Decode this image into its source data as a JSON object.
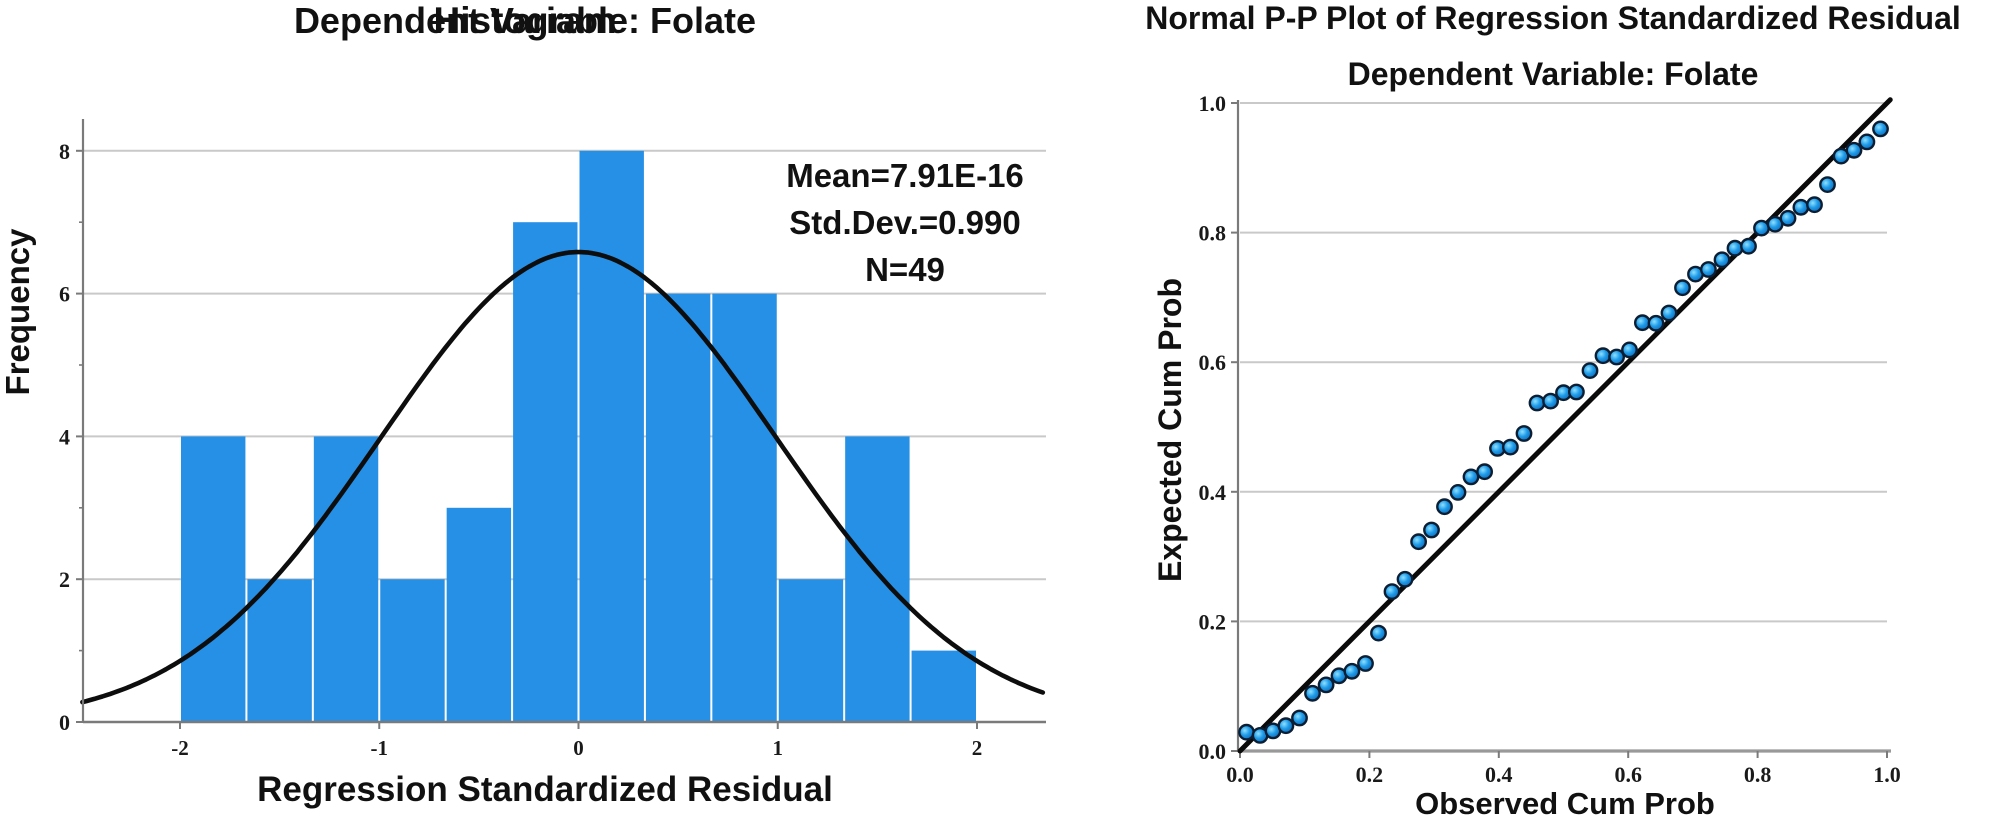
{
  "page": {
    "background": "#ffffff"
  },
  "histogram": {
    "title": "Histogram",
    "subtitle": "Dependent Variable: Folate",
    "x_label": "Regression Standardized Residual",
    "y_label": "Frequency",
    "stats": {
      "mean_label": "Mean=7.91E-16",
      "std_label": "Std.Dev.=0.990",
      "n_label": "N=49"
    }
  },
  "pp_plot": {
    "title": "Normal P-P Plot of Regression Standardized Residual",
    "subtitle": "Dependent Variable: Folate",
    "x_label": "Observed Cum Prob",
    "y_label": "Expected Cum Prob"
  },
  "colors": {
    "bar_fill": "#2690e6",
    "curve": "#0d0d0d",
    "reference_line": "#0a0a0a",
    "gridline": "#c9c9c9",
    "axis": "#7a7a7a",
    "tick_text": "#1a1a1a",
    "point_stroke": "#0b1e33",
    "point_core": "#8fe0ff",
    "point_mid": "#1e9be8",
    "point_rim": "#0d5fb0"
  },
  "chart_data": [
    {
      "type": "bar",
      "name": "histogram",
      "title": "Histogram",
      "subtitle": "Dependent Variable: Folate",
      "xlabel": "Regression Standardized Residual",
      "ylabel": "Frequency",
      "annotations": [
        "Mean=7.91E-16",
        "Std.Dev.=0.990",
        "N=49"
      ],
      "bin_start": -2,
      "bin_width": 0.33333,
      "values": [
        4,
        2,
        4,
        2,
        3,
        7,
        8,
        6,
        6,
        2,
        4,
        1
      ],
      "x_ticks": [
        -2,
        -1,
        0,
        1,
        2
      ],
      "y_ticks": [
        0,
        2,
        4,
        6,
        8
      ],
      "y_minor_ticks": [
        1,
        3,
        5,
        7
      ],
      "xlim": [
        -2.49,
        2.35
      ],
      "ylim": [
        0,
        8.45
      ],
      "grid": "horizontal",
      "overlay_curve": {
        "type": "normal",
        "mean": 0,
        "sd": 0.99,
        "n": 49,
        "peak": 6.582
      }
    },
    {
      "type": "scatter",
      "name": "pp_plot",
      "title": "Normal P-P Plot of Regression Standardized Residual",
      "subtitle": "Dependent Variable: Folate",
      "xlabel": "Observed Cum Prob",
      "ylabel": "Expected Cum Prob",
      "xlim": [
        0,
        1
      ],
      "ylim": [
        0,
        1
      ],
      "grid": "horizontal",
      "x_ticks": [
        "0.0",
        "0.2",
        "0.4",
        "0.6",
        "0.8",
        "1.0"
      ],
      "y_ticks": [
        "0.0",
        "0.2",
        "0.4",
        "0.6",
        "0.8",
        "1.0"
      ],
      "reference_line": [
        [
          0,
          0
        ],
        [
          1.005,
          1.005
        ]
      ],
      "x": [
        0.01,
        0.031,
        0.051,
        0.071,
        0.092,
        0.112,
        0.133,
        0.153,
        0.173,
        0.194,
        0.214,
        0.235,
        0.255,
        0.276,
        0.296,
        0.316,
        0.337,
        0.357,
        0.378,
        0.398,
        0.418,
        0.439,
        0.459,
        0.48,
        0.5,
        0.52,
        0.541,
        0.561,
        0.582,
        0.602,
        0.622,
        0.643,
        0.663,
        0.684,
        0.704,
        0.724,
        0.745,
        0.765,
        0.786,
        0.806,
        0.827,
        0.847,
        0.867,
        0.888,
        0.908,
        0.929,
        0.949,
        0.969,
        0.99
      ],
      "y": [
        0.029,
        0.024,
        0.031,
        0.039,
        0.051,
        0.089,
        0.102,
        0.116,
        0.123,
        0.135,
        0.182,
        0.246,
        0.265,
        0.323,
        0.341,
        0.377,
        0.399,
        0.423,
        0.431,
        0.467,
        0.469,
        0.49,
        0.537,
        0.54,
        0.553,
        0.554,
        0.587,
        0.61,
        0.608,
        0.619,
        0.661,
        0.66,
        0.676,
        0.715,
        0.736,
        0.743,
        0.758,
        0.776,
        0.779,
        0.807,
        0.813,
        0.822,
        0.839,
        0.843,
        0.874,
        0.918,
        0.927,
        0.94,
        0.96
      ]
    }
  ]
}
